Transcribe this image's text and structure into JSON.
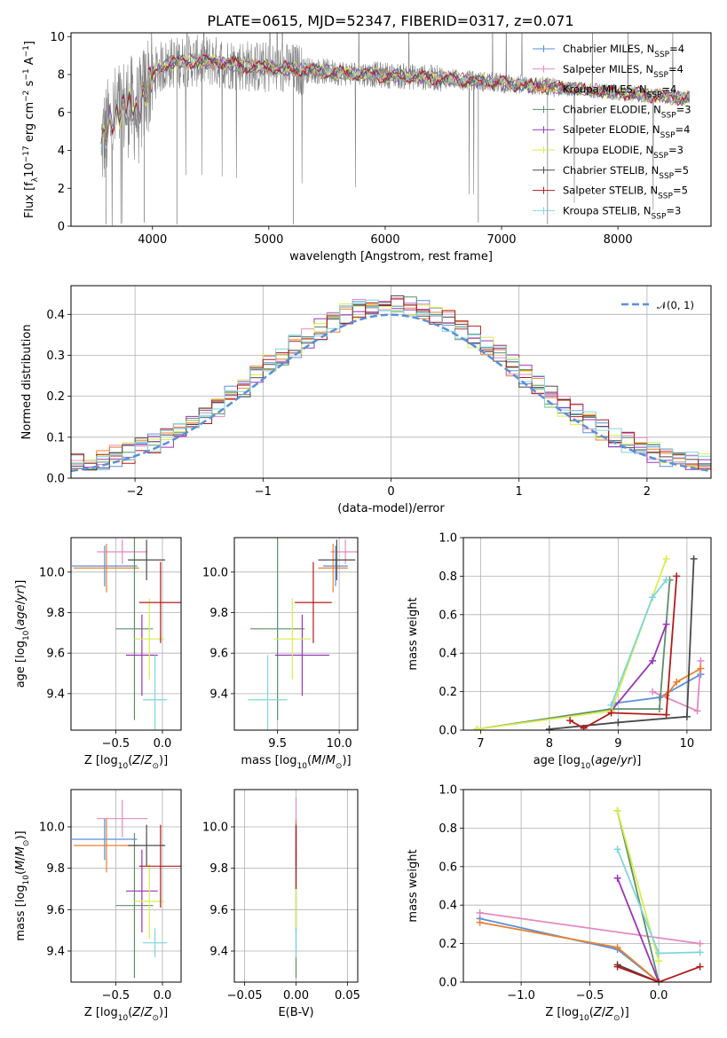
{
  "title": "PLATE=0615, MJD=52347, FIBERID=0317, z=0.071",
  "models": [
    {
      "name": "Chabrier MILES, N<sub>SSP</sub>=4",
      "color": "#5b8fdc"
    },
    {
      "name": "Salpeter MILES, N<sub>SSP</sub>=4",
      "color": "#e389c0"
    },
    {
      "name": "Kroupa MILES, N<sub>SSP</sub>=4",
      "color": "#e8822f"
    },
    {
      "name": "Chabrier ELODIE, N<sub>SSP</sub>=3",
      "color": "#5f8f6a"
    },
    {
      "name": "Salpeter ELODIE, N<sub>SSP</sub>=4",
      "color": "#9a35b6"
    },
    {
      "name": "Kroupa ELODIE, N<sub>SSP</sub>=3",
      "color": "#d9ee4d"
    },
    {
      "name": "Chabrier STELIB, N<sub>SSP</sub>=5",
      "color": "#4a4a4a"
    },
    {
      "name": "Salpeter STELIB, N<sub>SSP</sub>=5",
      "color": "#b31b1b"
    },
    {
      "name": "Kroupa STELIB, N<sub>SSP</sub>=3",
      "color": "#7fd6dc"
    }
  ],
  "chart_data": [
    {
      "id": "spectrum",
      "type": "line",
      "xlabel": "wavelength [Angstrom, rest frame]",
      "ylabel": "Flux [f<sub>λ</sub>10<sup>−17</sup> erg cm<sup>−2</sup> s<sup>−1</sup> A<sup>−1</sup>]",
      "xlim": [
        3300,
        8800
      ],
      "ylim": [
        0,
        10.2
      ],
      "xticks": [
        4000,
        5000,
        6000,
        7000,
        8000
      ],
      "yticks": [
        0,
        2,
        4,
        6,
        8,
        10
      ],
      "legend": "right",
      "continuum": {
        "x": [
          3560,
          3620,
          3700,
          3800,
          3880,
          3950,
          4050,
          4150,
          4300,
          4500,
          4700,
          4900,
          5100,
          5300,
          5600,
          5900,
          6200,
          6500,
          6800,
          7100,
          7400,
          7700,
          8000,
          8300,
          8600
        ],
        "y": [
          4.3,
          5.2,
          6.0,
          6.4,
          5.9,
          7.4,
          8.3,
          8.6,
          8.7,
          8.7,
          8.55,
          8.4,
          8.3,
          8.25,
          8.1,
          8.0,
          7.9,
          7.8,
          7.65,
          7.5,
          7.35,
          7.2,
          7.05,
          6.9,
          6.75
        ]
      }
    },
    {
      "id": "residuals",
      "type": "line",
      "xlabel": "(data-model)/error",
      "ylabel": "Normed distribution",
      "xlim": [
        -2.5,
        2.5
      ],
      "ylim": [
        0,
        0.47
      ],
      "xticks": [
        -2,
        -1,
        0,
        1,
        2
      ],
      "yticks": [
        0.0,
        0.1,
        0.2,
        0.3,
        0.4
      ],
      "grid": true,
      "legend": "top-right",
      "gaussian_label": "𝒩(0, 1)",
      "gaussian_color": "#5b8fdc",
      "bin_width": 0.1
    },
    {
      "id": "age-z",
      "type": "scatter",
      "xlabel": "Z [log<sub>10</sub>(<tspan font-style='italic'>Z</tspan>/<tspan font-style='italic'>Z</tspan><sub>⊙</sub>)]",
      "ylabel": "age  [log<sub>10</sub>(<tspan font-style='italic'>age</tspan>/<tspan font-style='italic'>yr</tspan>)]",
      "xlim": [
        -0.98,
        0.2
      ],
      "ylim": [
        9.22,
        10.17
      ],
      "xticks": [
        -0.5,
        0.0
      ],
      "yticks": [
        9.4,
        9.6,
        9.8,
        10.0
      ],
      "grid": true,
      "points": [
        {
          "x": -0.62,
          "xerr": 0.35,
          "y": 10.03,
          "yerr": 0.1
        },
        {
          "x": -0.43,
          "xerr": 0.27,
          "y": 10.1,
          "yerr": 0.06
        },
        {
          "x": -0.6,
          "xerr": 0.35,
          "y": 10.02,
          "yerr": 0.12
        },
        {
          "x": -0.3,
          "xerr": 0.2,
          "y": 9.72,
          "yerr": 0.45
        },
        {
          "x": -0.22,
          "xerr": 0.17,
          "y": 9.59,
          "yerr": 0.2
        },
        {
          "x": -0.14,
          "xerr": 0.16,
          "y": 9.67,
          "yerr": 0.2
        },
        {
          "x": -0.17,
          "xerr": 0.2,
          "y": 10.06,
          "yerr": 0.1
        },
        {
          "x": -0.02,
          "xerr": 0.23,
          "y": 9.85,
          "yerr": 0.2
        },
        {
          "x": -0.08,
          "xerr": 0.13,
          "y": 9.37,
          "yerr": 0.22
        }
      ]
    },
    {
      "id": "age-mass",
      "type": "scatter",
      "xlabel": "mass [log<sub>10</sub>(<tspan font-style='italic'>M</tspan>/<tspan font-style='italic'>M</tspan><sub>⊙</sub>)]",
      "ylabel": "",
      "xlim": [
        9.15,
        10.15
      ],
      "ylim": [
        9.22,
        10.17
      ],
      "xticks": [
        9.5,
        10.0
      ],
      "yticks": [
        9.4,
        9.6,
        9.8,
        10.0
      ],
      "grid": true,
      "points": [
        {
          "x": 9.97,
          "xerr": 0.1,
          "y": 10.03,
          "yerr": 0.1
        },
        {
          "x": 10.05,
          "xerr": 0.12,
          "y": 10.1,
          "yerr": 0.06
        },
        {
          "x": 9.95,
          "xerr": 0.12,
          "y": 10.02,
          "yerr": 0.12
        },
        {
          "x": 9.5,
          "xerr": 0.22,
          "y": 9.72,
          "yerr": 0.45
        },
        {
          "x": 9.7,
          "xerr": 0.22,
          "y": 9.59,
          "yerr": 0.2
        },
        {
          "x": 9.62,
          "xerr": 0.15,
          "y": 9.67,
          "yerr": 0.2
        },
        {
          "x": 9.98,
          "xerr": 0.15,
          "y": 10.06,
          "yerr": 0.1
        },
        {
          "x": 9.79,
          "xerr": 0.15,
          "y": 9.85,
          "yerr": 0.2
        },
        {
          "x": 9.42,
          "xerr": 0.16,
          "y": 9.37,
          "yerr": 0.22
        }
      ]
    },
    {
      "id": "weight-age",
      "type": "line",
      "xlabel": "age  [log<sub>10</sub>(<tspan font-style='italic'>age</tspan>/<tspan font-style='italic'>yr</tspan>)]",
      "ylabel": "mass weight",
      "xlim": [
        6.75,
        10.35
      ],
      "ylim": [
        0,
        1.0
      ],
      "xticks": [
        7,
        8,
        9,
        10
      ],
      "yticks": [
        0.0,
        0.2,
        0.4,
        0.6,
        0.8,
        1.0
      ],
      "grid": true,
      "series": [
        {
          "x": [
            8.95,
            9.6,
            10.2
          ],
          "y": [
            0.14,
            0.17,
            0.29
          ]
        },
        {
          "x": [
            9.5,
            10.15,
            10.2
          ],
          "y": [
            0.2,
            0.1,
            0.36
          ]
        },
        {
          "x": [
            9.7,
            9.85,
            10.2
          ],
          "y": [
            0.18,
            0.25,
            0.32
          ]
        },
        {
          "x": [
            6.95,
            8.9,
            9.6,
            9.75
          ],
          "y": [
            0.005,
            0.11,
            0.11,
            0.78
          ]
        },
        {
          "x": [
            8.9,
            9.5,
            9.7
          ],
          "y": [
            0.1,
            0.36,
            0.55
          ]
        },
        {
          "x": [
            6.95,
            8.9,
            9.7
          ],
          "y": [
            0.005,
            0.1,
            0.89
          ]
        },
        {
          "x": [
            8.0,
            9.0,
            10.0,
            10.1
          ],
          "y": [
            0.005,
            0.04,
            0.07,
            0.89
          ]
        },
        {
          "x": [
            8.3,
            8.5,
            8.9,
            9.7,
            9.85
          ],
          "y": [
            0.05,
            0.01,
            0.09,
            0.08,
            0.8
          ]
        },
        {
          "x": [
            8.9,
            9.5,
            9.7
          ],
          "y": [
            0.13,
            0.69,
            0.78
          ]
        }
      ]
    },
    {
      "id": "mass-z",
      "type": "scatter",
      "xlabel": "Z [log<sub>10</sub>(<tspan font-style='italic'>Z</tspan>/<tspan font-style='italic'>Z</tspan><sub>⊙</sub>)]",
      "ylabel": "mass [log<sub>10</sub>(<tspan font-style='italic'>M</tspan>/<tspan font-style='italic'>M</tspan><sub>⊙</sub>)]",
      "xlim": [
        -0.98,
        0.2
      ],
      "ylim": [
        9.25,
        10.18
      ],
      "xticks": [
        -0.5,
        0.0
      ],
      "yticks": [
        9.4,
        9.6,
        9.8,
        10.0
      ],
      "grid": true,
      "points": [
        {
          "x": -0.62,
          "xerr": 0.35,
          "y": 9.94,
          "yerr": 0.1
        },
        {
          "x": -0.43,
          "xerr": 0.27,
          "y": 10.04,
          "yerr": 0.09
        },
        {
          "x": -0.6,
          "xerr": 0.35,
          "y": 9.91,
          "yerr": 0.13
        },
        {
          "x": -0.3,
          "xerr": 0.2,
          "y": 9.62,
          "yerr": 0.35
        },
        {
          "x": -0.22,
          "xerr": 0.17,
          "y": 9.69,
          "yerr": 0.2
        },
        {
          "x": -0.14,
          "xerr": 0.16,
          "y": 9.64,
          "yerr": 0.18
        },
        {
          "x": -0.17,
          "xerr": 0.2,
          "y": 9.91,
          "yerr": 0.1
        },
        {
          "x": -0.02,
          "xerr": 0.23,
          "y": 9.81,
          "yerr": 0.2
        },
        {
          "x": -0.08,
          "xerr": 0.13,
          "y": 9.44,
          "yerr": 0.07
        }
      ]
    },
    {
      "id": "ebv",
      "type": "scatter",
      "xlabel": "E(B-V)",
      "ylabel": "",
      "xlim": [
        -0.06,
        0.06
      ],
      "ylim": [
        9.25,
        10.18
      ],
      "xticks": [
        -0.05,
        0.0,
        0.05
      ],
      "yticks": [
        9.4,
        9.6,
        9.8,
        10.0
      ],
      "grid": true,
      "points": [
        {
          "x": 0.0,
          "xerr": 0.0,
          "y": 9.94,
          "yerr": 0.1
        },
        {
          "x": 0.0,
          "xerr": 0.0,
          "y": 10.04,
          "yerr": 0.1
        },
        {
          "x": 0.0,
          "xerr": 0.0,
          "y": 9.91,
          "yerr": 0.12
        },
        {
          "x": 0.0,
          "xerr": 0.0,
          "y": 9.62,
          "yerr": 0.35
        },
        {
          "x": 0.0,
          "xerr": 0.0,
          "y": 9.69,
          "yerr": 0.2
        },
        {
          "x": 0.0,
          "xerr": 0.0,
          "y": 9.64,
          "yerr": 0.18
        },
        {
          "x": 0.0,
          "xerr": 0.0,
          "y": 9.91,
          "yerr": 0.1
        },
        {
          "x": 0.0,
          "xerr": 0.0,
          "y": 9.85,
          "yerr": 0.15
        },
        {
          "x": 0.0,
          "xerr": 0.0,
          "y": 9.44,
          "yerr": 0.07
        }
      ]
    },
    {
      "id": "weight-z",
      "type": "line",
      "xlabel": "Z [log<sub>10</sub>(<tspan font-style='italic'>Z</tspan>/<tspan font-style='italic'>Z</tspan><sub>⊙</sub>)]",
      "ylabel": "mass weight",
      "xlim": [
        -1.42,
        0.38
      ],
      "ylim": [
        0,
        1.0
      ],
      "xticks": [
        -1.0,
        -0.5,
        0.0
      ],
      "yticks": [
        0.0,
        0.2,
        0.4,
        0.6,
        0.8,
        1.0
      ],
      "grid": true,
      "series": [
        {
          "x": [
            -1.3,
            -0.3,
            0.0
          ],
          "y": [
            0.33,
            0.17,
            0.0
          ]
        },
        {
          "x": [
            -1.3,
            0.3
          ],
          "y": [
            0.36,
            0.2
          ]
        },
        {
          "x": [
            -1.3,
            -0.3,
            0.0
          ],
          "y": [
            0.31,
            0.18,
            0.0
          ]
        },
        {
          "x": [
            -0.3,
            0.0
          ],
          "y": [
            0.89,
            0.0
          ]
        },
        {
          "x": [
            -0.3,
            0.0
          ],
          "y": [
            0.54,
            0.0
          ]
        },
        {
          "x": [
            -0.3,
            0.0
          ],
          "y": [
            0.89,
            0.11
          ]
        },
        {
          "x": [
            -0.3,
            0.0
          ],
          "y": [
            0.09,
            0.0
          ]
        },
        {
          "x": [
            -0.3,
            0.0,
            0.3
          ],
          "y": [
            0.08,
            0.0,
            0.08
          ]
        },
        {
          "x": [
            -0.3,
            0.0,
            0.3
          ],
          "y": [
            0.69,
            0.15,
            0.155
          ]
        }
      ]
    }
  ]
}
